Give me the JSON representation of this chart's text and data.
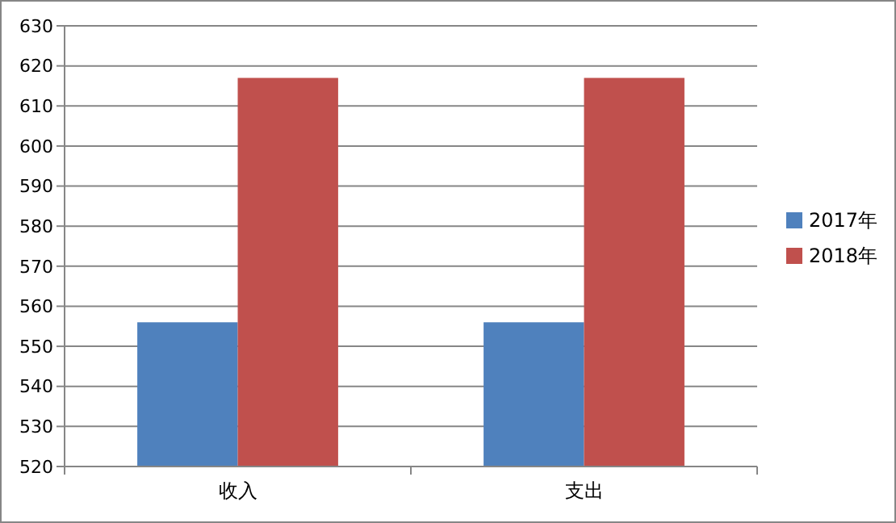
{
  "chart_data": {
    "type": "bar",
    "categories": [
      "收入",
      "支出"
    ],
    "series": [
      {
        "name": "2017年",
        "color": "#4f81bd",
        "values": [
          556,
          556
        ]
      },
      {
        "name": "2018年",
        "color": "#c0504d",
        "values": [
          617,
          617
        ]
      }
    ],
    "ylim": [
      520,
      630
    ],
    "yticks": [
      520,
      530,
      540,
      550,
      560,
      570,
      580,
      590,
      600,
      610,
      620,
      630
    ],
    "grid": "y",
    "legend": "right"
  }
}
